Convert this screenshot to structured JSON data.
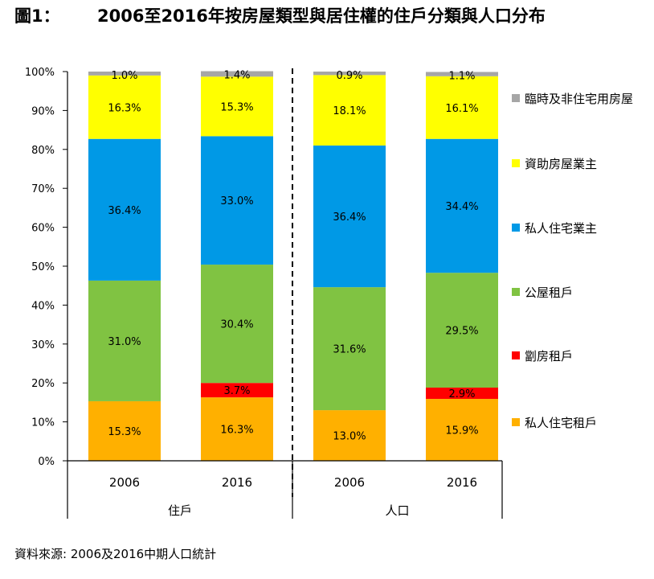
{
  "figure": {
    "number": "圖1：",
    "title": "2006至2016年按房屋類型與居住權的住戶分類與人口分布",
    "source": "資料來源: 2006及2016中期人口統計"
  },
  "chart_data": {
    "type": "bar",
    "stacked": true,
    "normalized": true,
    "groups": [
      {
        "label": "住戶",
        "categories": [
          "2006",
          "2016"
        ]
      },
      {
        "label": "人口",
        "categories": [
          "2006",
          "2016"
        ]
      }
    ],
    "categories": [
      "2006",
      "2016",
      "2006",
      "2016"
    ],
    "ylim": [
      0,
      100
    ],
    "yticks": [
      "0%",
      "10%",
      "20%",
      "30%",
      "40%",
      "50%",
      "60%",
      "70%",
      "80%",
      "90%",
      "100%"
    ],
    "grid": false,
    "legend_position": "right",
    "series": [
      {
        "name": "私人住宅租戶",
        "color": "#FFB000",
        "values": [
          15.3,
          16.3,
          13.0,
          15.9
        ],
        "labels": [
          "15.3%",
          "16.3%",
          "13.0%",
          "15.9%"
        ]
      },
      {
        "name": "劏房租戶",
        "color": "#FF0000",
        "values": [
          0,
          3.7,
          0,
          2.9
        ],
        "labels": [
          "",
          "3.7%",
          "",
          "2.9%"
        ]
      },
      {
        "name": "公屋租戶",
        "color": "#80C342",
        "values": [
          31.0,
          30.4,
          31.6,
          29.5
        ],
        "labels": [
          "31.0%",
          "30.4%",
          "31.6%",
          "29.5%"
        ]
      },
      {
        "name": "私人住宅業主",
        "color": "#0099E6",
        "values": [
          36.4,
          33.0,
          36.4,
          34.4
        ],
        "labels": [
          "36.4%",
          "33.0%",
          "36.4%",
          "34.4%"
        ]
      },
      {
        "name": "資助房屋業主",
        "color": "#FFFF00",
        "values": [
          16.3,
          15.3,
          18.1,
          16.1
        ],
        "labels": [
          "16.3%",
          "15.3%",
          "18.1%",
          "16.1%"
        ]
      },
      {
        "name": "臨時及非住宅用房屋",
        "color": "#A6A6A6",
        "values": [
          1.0,
          1.4,
          0.9,
          1.1
        ],
        "labels": [
          "1.0%",
          "1.4%",
          "0.9%",
          "1.1%"
        ]
      }
    ]
  }
}
